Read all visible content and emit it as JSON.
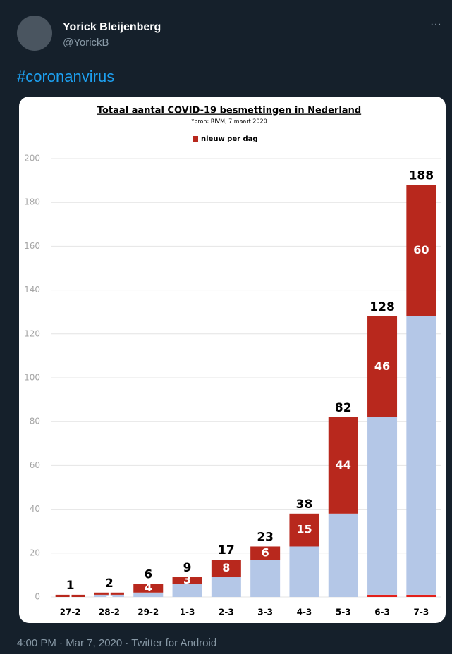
{
  "tweet": {
    "author": "Yorick Bleijenberg",
    "handle": "@YorickB",
    "text": "#coronanvirus",
    "footer": "4:00 PM · Mar 7, 2020 · Twitter for Android"
  },
  "chart_data": {
    "type": "stacked-bar",
    "title": "Totaal aantal COVID-19 besmettingen in Nederland",
    "subtitle": "*bron: RIVM, 7 maart 2020",
    "categories": [
      "27-2",
      "28-2",
      "29-2",
      "1-3",
      "2-3",
      "3-3",
      "4-3",
      "5-3",
      "6-3",
      "7-3"
    ],
    "series": [
      {
        "color": "#e3201b",
        "values": [
          null,
          null,
          null,
          null,
          null,
          null,
          null,
          null,
          1,
          1
        ]
      },
      {
        "color": "#b4c7e7",
        "values": [
          0,
          1,
          2,
          6,
          9,
          17,
          23,
          38,
          81,
          127
        ]
      },
      {
        "name": "nieuw per dag",
        "color": "#b8281d",
        "values": [
          1,
          1,
          4,
          3,
          8,
          6,
          15,
          44,
          46,
          60
        ]
      }
    ],
    "totals": [
      1,
      2,
      6,
      9,
      17,
      23,
      38,
      82,
      128,
      188
    ],
    "ylim": [
      0,
      200
    ],
    "yticks": [
      0,
      20,
      40,
      60,
      80,
      100,
      120,
      140,
      160,
      180,
      200
    ],
    "grid": true
  }
}
